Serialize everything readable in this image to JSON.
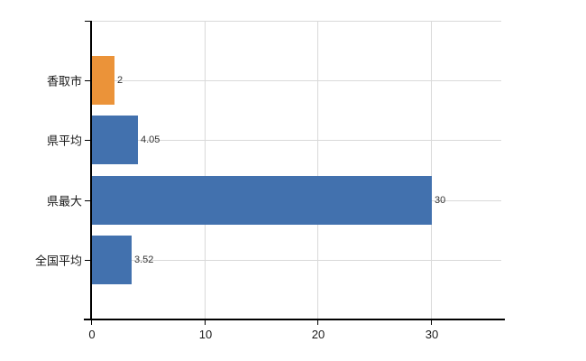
{
  "chart_data": {
    "type": "bar",
    "orientation": "horizontal",
    "title": "",
    "xlabel": "",
    "ylabel": "",
    "categories": [
      "香取市",
      "県平均",
      "県最大",
      "全国平均"
    ],
    "values": [
      2,
      4.05,
      30,
      3.52
    ],
    "value_labels": [
      "2",
      "4.05",
      "30",
      "3.52"
    ],
    "bar_colors": [
      "#eb9339",
      "#4271ae",
      "#4271ae",
      "#4271ae"
    ],
    "x_ticks": [
      0,
      10,
      20,
      30
    ],
    "x_tick_labels": [
      "0",
      "10",
      "20",
      "30"
    ],
    "xlim": [
      0,
      36
    ],
    "grid": true,
    "legend": "none",
    "colors": {
      "orange_bar": "#eb9339",
      "blue_bar": "#4271ae",
      "gridline": "#d9d9d9",
      "axis": "#000000",
      "text": "#1a1a1a"
    }
  }
}
